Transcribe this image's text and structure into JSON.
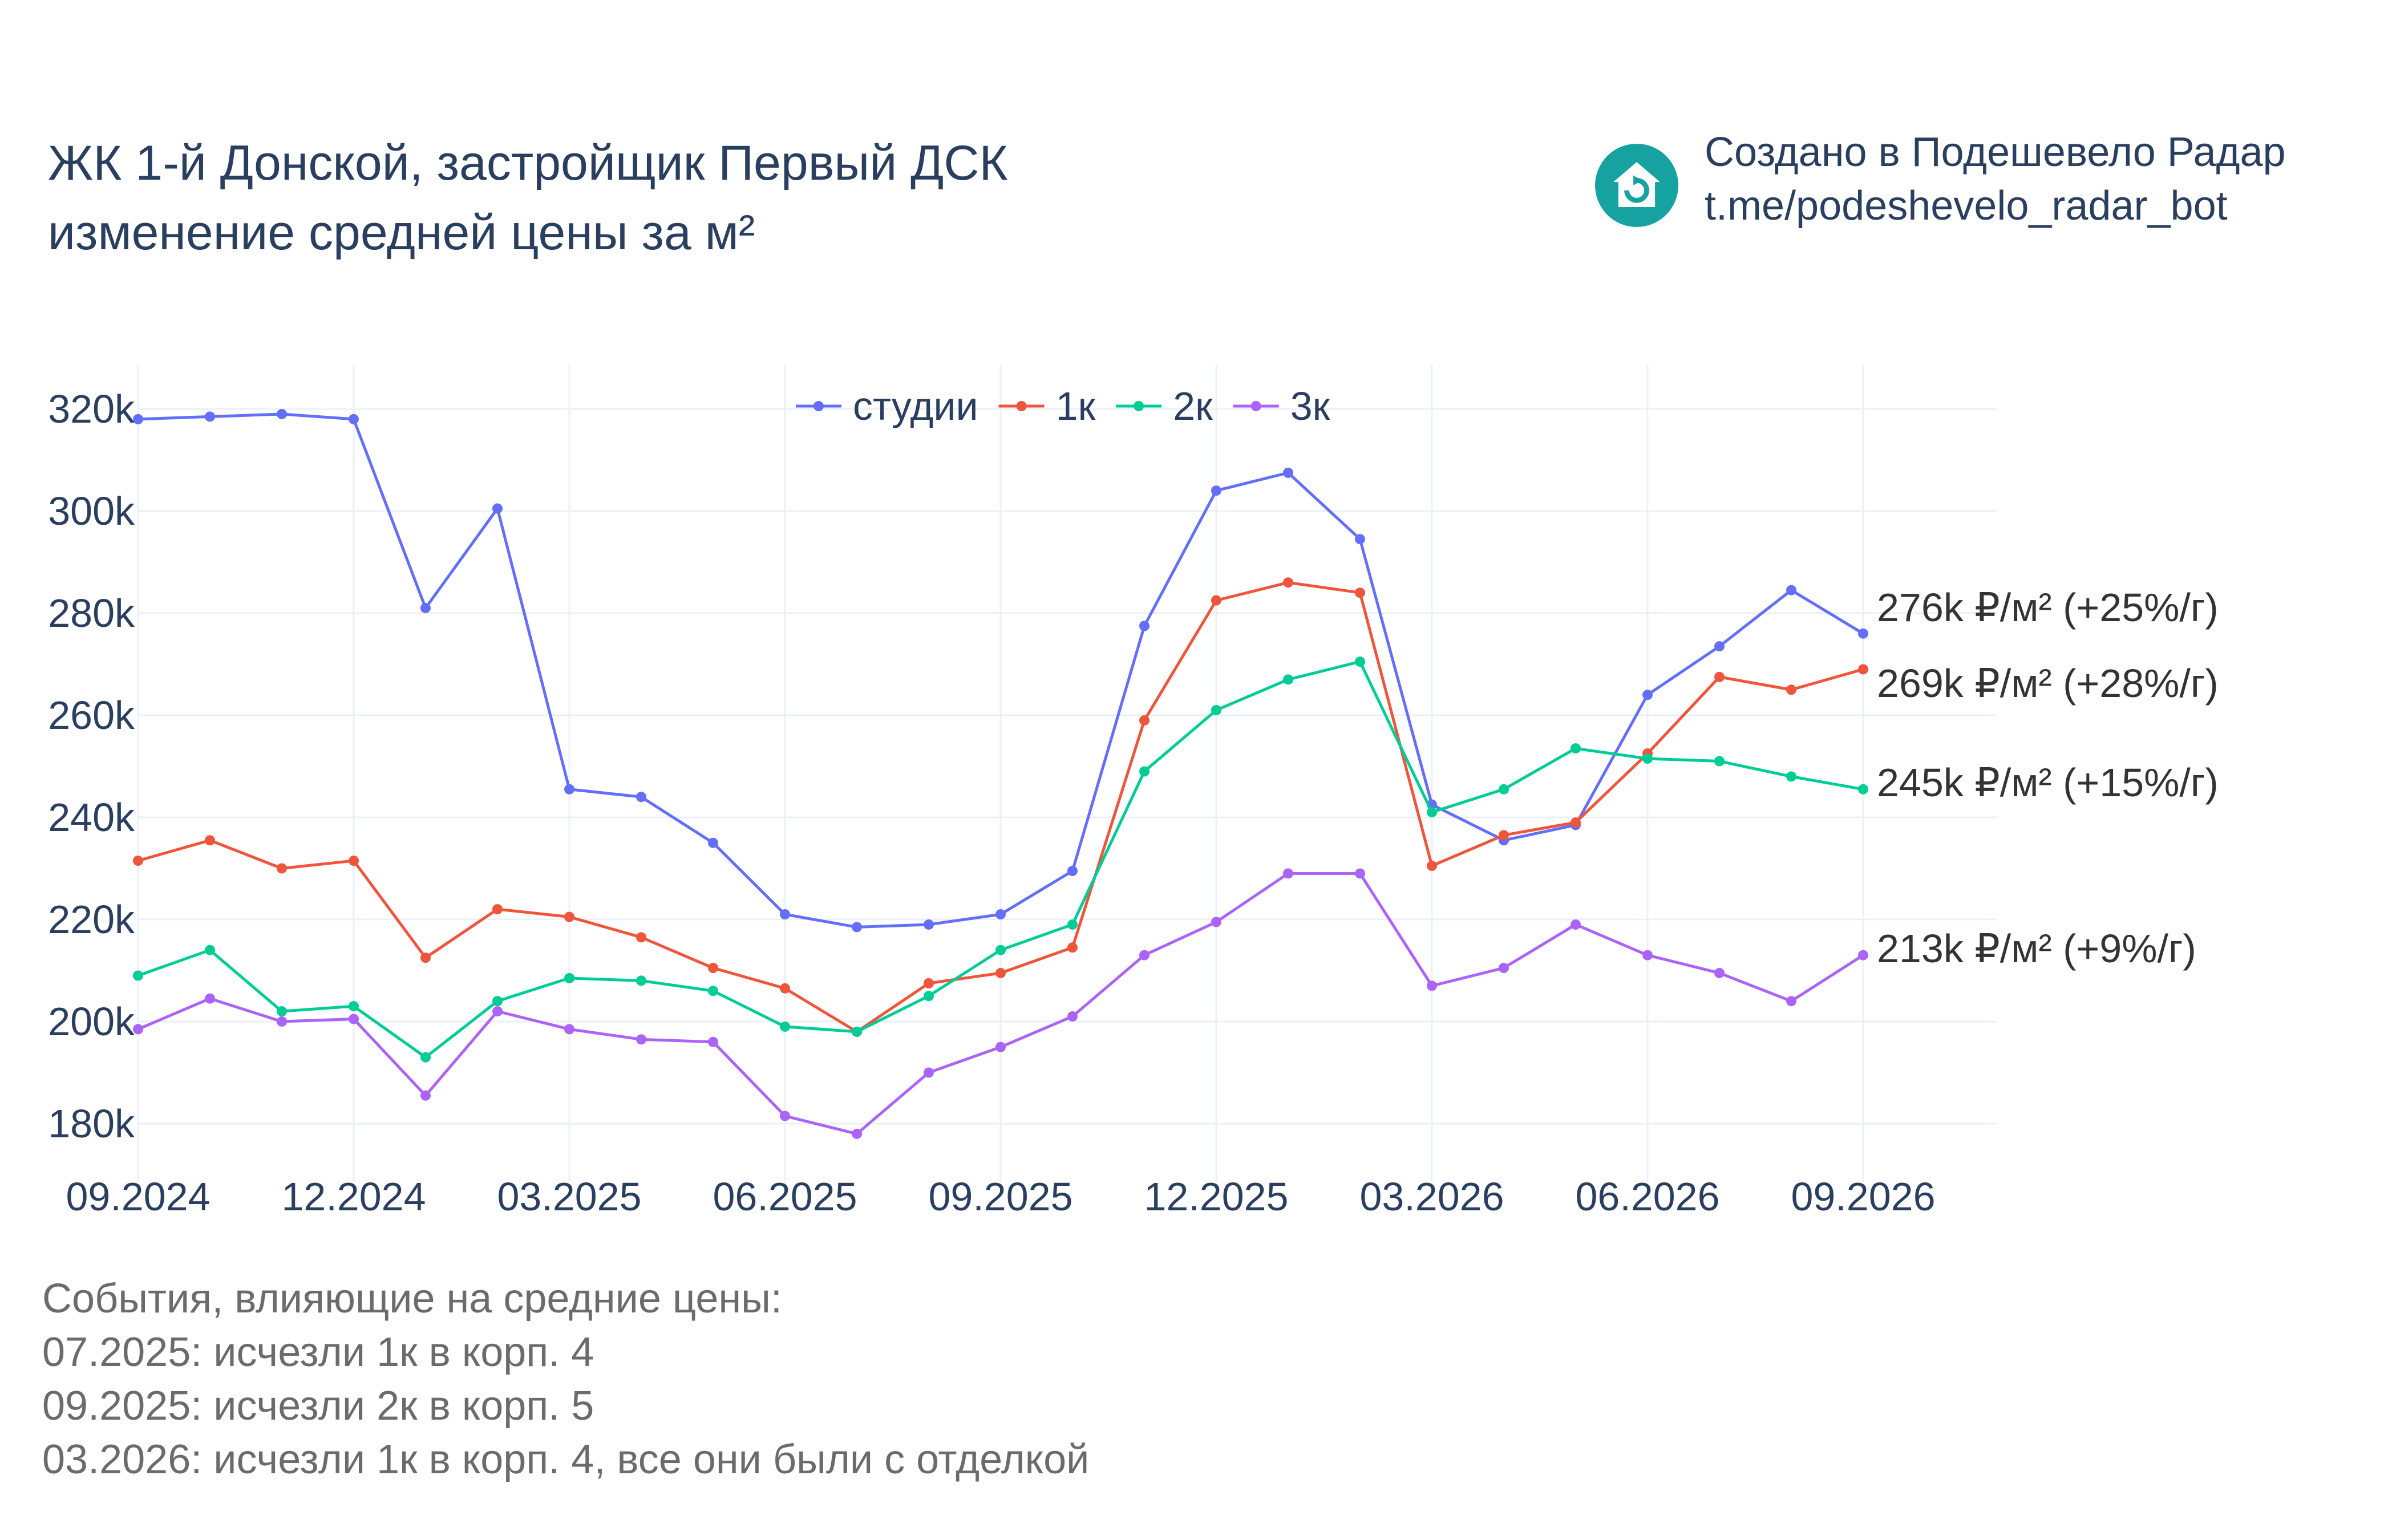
{
  "header": {
    "title_line1": "ЖК 1-й Донской, застройщик Первый ДСК",
    "title_line2": "изменение средней цены за м²"
  },
  "brand": {
    "icon": "house-refresh-icon",
    "line1": "Создано в Подешевело Радар",
    "line2": "t.me/podeshevelo_radar_bot",
    "color": "#17a2a2"
  },
  "events": {
    "heading": "События, влияющие на средние цены:",
    "items": [
      "07.2025: исчезли 1к в корп. 4",
      "09.2025: исчезли 2к в корп. 5",
      "03.2026: исчезли 1к в корп. 4, все они были с отделкой"
    ]
  },
  "chart_data": {
    "type": "line",
    "x": [
      "09.2024",
      "10.2024",
      "11.2024",
      "12.2024",
      "01.2025",
      "02.2025",
      "03.2025",
      "04.2025",
      "05.2025",
      "06.2025",
      "07.2025",
      "08.2025",
      "09.2025",
      "10.2025",
      "11.2025",
      "12.2025",
      "01.2026",
      "02.2026",
      "03.2026",
      "04.2026",
      "05.2026",
      "06.2026",
      "07.2026",
      "08.2026",
      "09.2026"
    ],
    "x_tick_labels": [
      "09.2024",
      "12.2024",
      "03.2025",
      "06.2025",
      "09.2025",
      "12.2025",
      "03.2026",
      "06.2026",
      "09.2026"
    ],
    "y_tick_values": [
      180,
      200,
      220,
      240,
      260,
      280,
      300,
      320
    ],
    "y_tick_labels": [
      "180k",
      "200k",
      "220k",
      "240k",
      "260k",
      "280k",
      "300k",
      "320k"
    ],
    "ylim": [
      169,
      328
    ],
    "grid": true,
    "legend_position": "top-center",
    "series": [
      {
        "name": "студии",
        "color": "#636efa",
        "values": [
          318,
          318.5,
          319,
          318,
          281,
          300.5,
          245.5,
          244,
          235,
          221,
          218.5,
          219,
          221,
          229.5,
          277.5,
          304,
          307.5,
          294.5,
          242.5,
          235.5,
          238.5,
          264,
          273.5,
          284.5,
          276
        ],
        "end_label": "276k ₽/м² (+25%/г)"
      },
      {
        "name": "1к",
        "color": "#ef553b",
        "values": [
          231.5,
          235.5,
          230,
          231.5,
          212.5,
          222,
          220.5,
          216.5,
          210.5,
          206.5,
          198,
          207.5,
          209.5,
          214.5,
          259,
          282.5,
          286,
          284,
          230.5,
          236.5,
          239,
          252.5,
          267.5,
          265,
          269
        ],
        "end_label": "269k ₽/м² (+28%/г)"
      },
      {
        "name": "2к",
        "color": "#00cc96",
        "values": [
          209,
          214,
          202,
          203,
          193,
          204,
          208.5,
          208,
          206,
          199,
          198,
          205,
          214,
          219,
          249,
          261,
          267,
          270.5,
          241,
          245.5,
          253.5,
          251.5,
          251,
          248,
          245.5
        ],
        "end_label": "245k ₽/м² (+15%/г)"
      },
      {
        "name": "3к",
        "color": "#ab63fa",
        "values": [
          198.5,
          204.5,
          200,
          200.5,
          185.5,
          202,
          198.5,
          196.5,
          196,
          181.5,
          178,
          190,
          195,
          201,
          213,
          219.5,
          229,
          229,
          207,
          210.5,
          219,
          213,
          209.5,
          204,
          213
        ],
        "end_label": "213k ₽/м² (+9%/г)"
      }
    ]
  }
}
